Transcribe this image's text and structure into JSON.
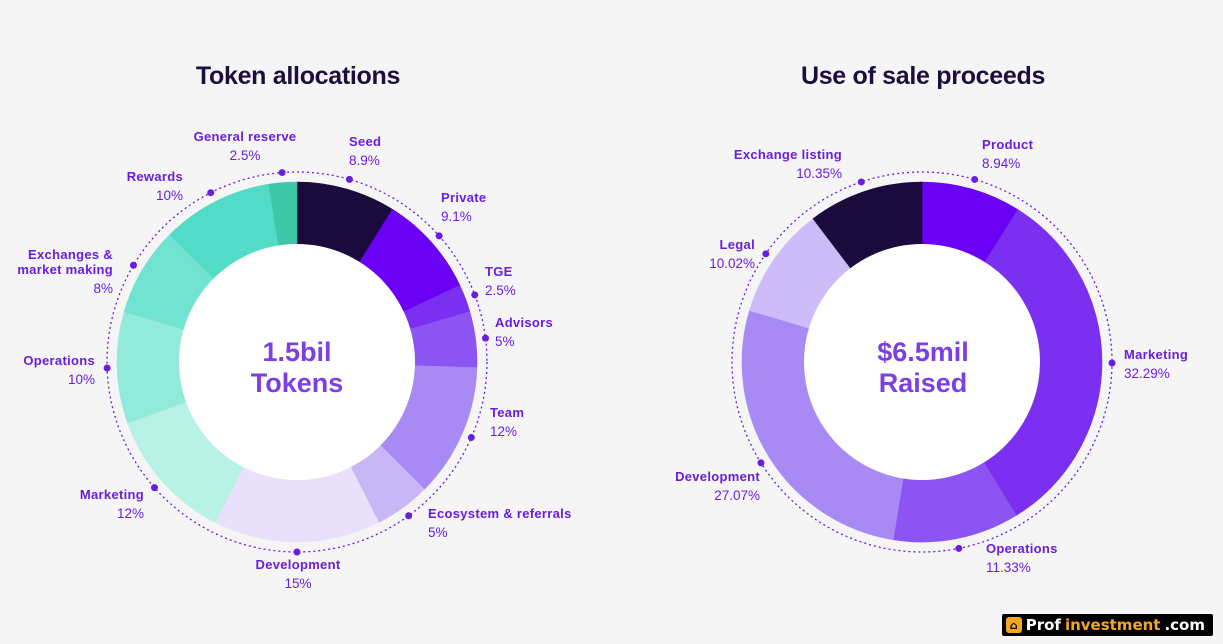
{
  "chart_data": [
    {
      "type": "pie",
      "title": "Token allocations",
      "center_line1": "1.5bil",
      "center_line2": "Tokens",
      "slices": [
        {
          "label": "Seed",
          "pct_text": "8.9%",
          "value": 8.9,
          "color": "#1b0a3c"
        },
        {
          "label": "Private",
          "pct_text": "9.1%",
          "value": 9.1,
          "color": "#6a00f4"
        },
        {
          "label": "TGE",
          "pct_text": "2.5%",
          "value": 2.5,
          "color": "#7b2ff0"
        },
        {
          "label": "Advisors",
          "pct_text": "5%",
          "value": 5,
          "color": "#8c54f3"
        },
        {
          "label": "Team",
          "pct_text": "12%",
          "value": 12,
          "color": "#a98af5"
        },
        {
          "label": "Ecosystem & referrals",
          "pct_text": "5%",
          "value": 5,
          "color": "#c8b6f7"
        },
        {
          "label": "Development",
          "pct_text": "15%",
          "value": 15,
          "color": "#e9e1fb"
        },
        {
          "label": "Marketing",
          "pct_text": "12%",
          "value": 12,
          "color": "#b8f1e5"
        },
        {
          "label": "Operations",
          "pct_text": "10%",
          "value": 10,
          "color": "#92eadb"
        },
        {
          "label": "Exchanges & market making",
          "label_line1": "Exchanges &",
          "label_line2": "market making",
          "pct_text": "8%",
          "value": 8,
          "color": "#72e3d1"
        },
        {
          "label": "Rewards",
          "pct_text": "10%",
          "value": 10,
          "color": "#52dcc7"
        },
        {
          "label": "General reserve",
          "pct_text": "2.5%",
          "value": 2.5,
          "color": "#3fc7a7"
        }
      ]
    },
    {
      "type": "pie",
      "title": "Use of sale proceeds",
      "center_line1": "$6.5mil",
      "center_line2": "Raised",
      "slices": [
        {
          "label": "Product",
          "pct_text": "8.94%",
          "value": 8.94,
          "color": "#6a00f4"
        },
        {
          "label": "Marketing",
          "pct_text": "32.29%",
          "value": 32.29,
          "color": "#7b2ff0"
        },
        {
          "label": "Operations",
          "pct_text": "11.33%",
          "value": 11.33,
          "color": "#8c54f3"
        },
        {
          "label": "Development",
          "pct_text": "27.07%",
          "value": 27.07,
          "color": "#a98af5"
        },
        {
          "label": "Legal",
          "pct_text": "10.02%",
          "value": 10.02,
          "color": "#cdbcf7"
        },
        {
          "label": "Exchange listing",
          "pct_text": "10.35%",
          "value": 10.35,
          "color": "#1b0a3c"
        }
      ]
    }
  ],
  "watermark": {
    "part1": "Prof",
    "part2": "investment",
    "part3": ".com"
  }
}
